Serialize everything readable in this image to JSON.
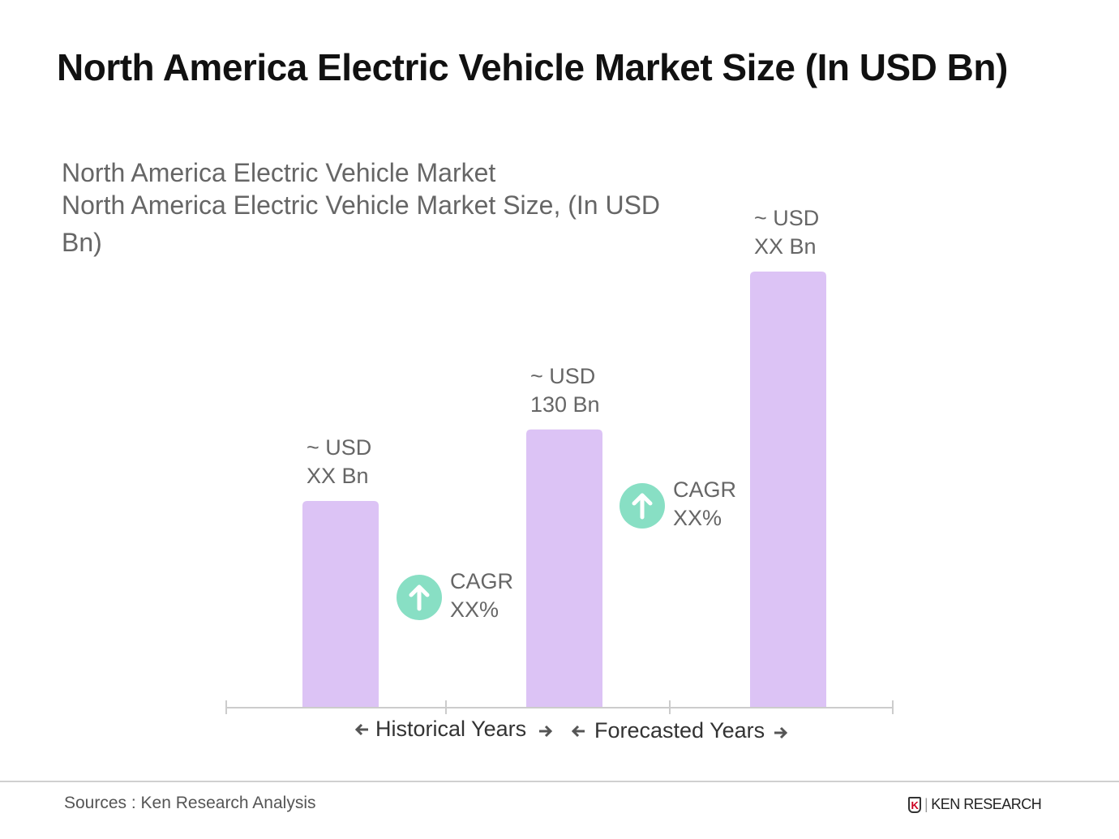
{
  "title": "North America Electric Vehicle Market Size (In USD Bn)",
  "subtitle_line1": "North America Electric Vehicle Market",
  "subtitle_line2": "North America Electric Vehicle Market Size, (In USD",
  "subtitle_line3": "Bn)",
  "chart_data": {
    "type": "bar",
    "categories": [
      "",
      "",
      ""
    ],
    "values": [
      96.5,
      130,
      204
    ],
    "data_labels": [
      [
        "~ USD",
        "XX Bn"
      ],
      [
        "~ USD",
        "130 Bn"
      ],
      [
        "~ USD",
        "XX Bn"
      ]
    ],
    "bar_color": "#dcc3f5",
    "cagr_labels": [
      [
        "CAGR",
        "XX%"
      ],
      [
        "CAGR",
        "XX%"
      ]
    ],
    "cagr_icon": "arrow-up-circle-icon",
    "cagr_color": "#88dfc4",
    "period_labels": [
      "Historical Years",
      "Forecasted Years"
    ],
    "ylim": [
      0,
      210
    ],
    "grid": false
  },
  "footer": {
    "source": "Sources : Ken Research Analysis",
    "logo_text": "KEN RESEARCH"
  }
}
